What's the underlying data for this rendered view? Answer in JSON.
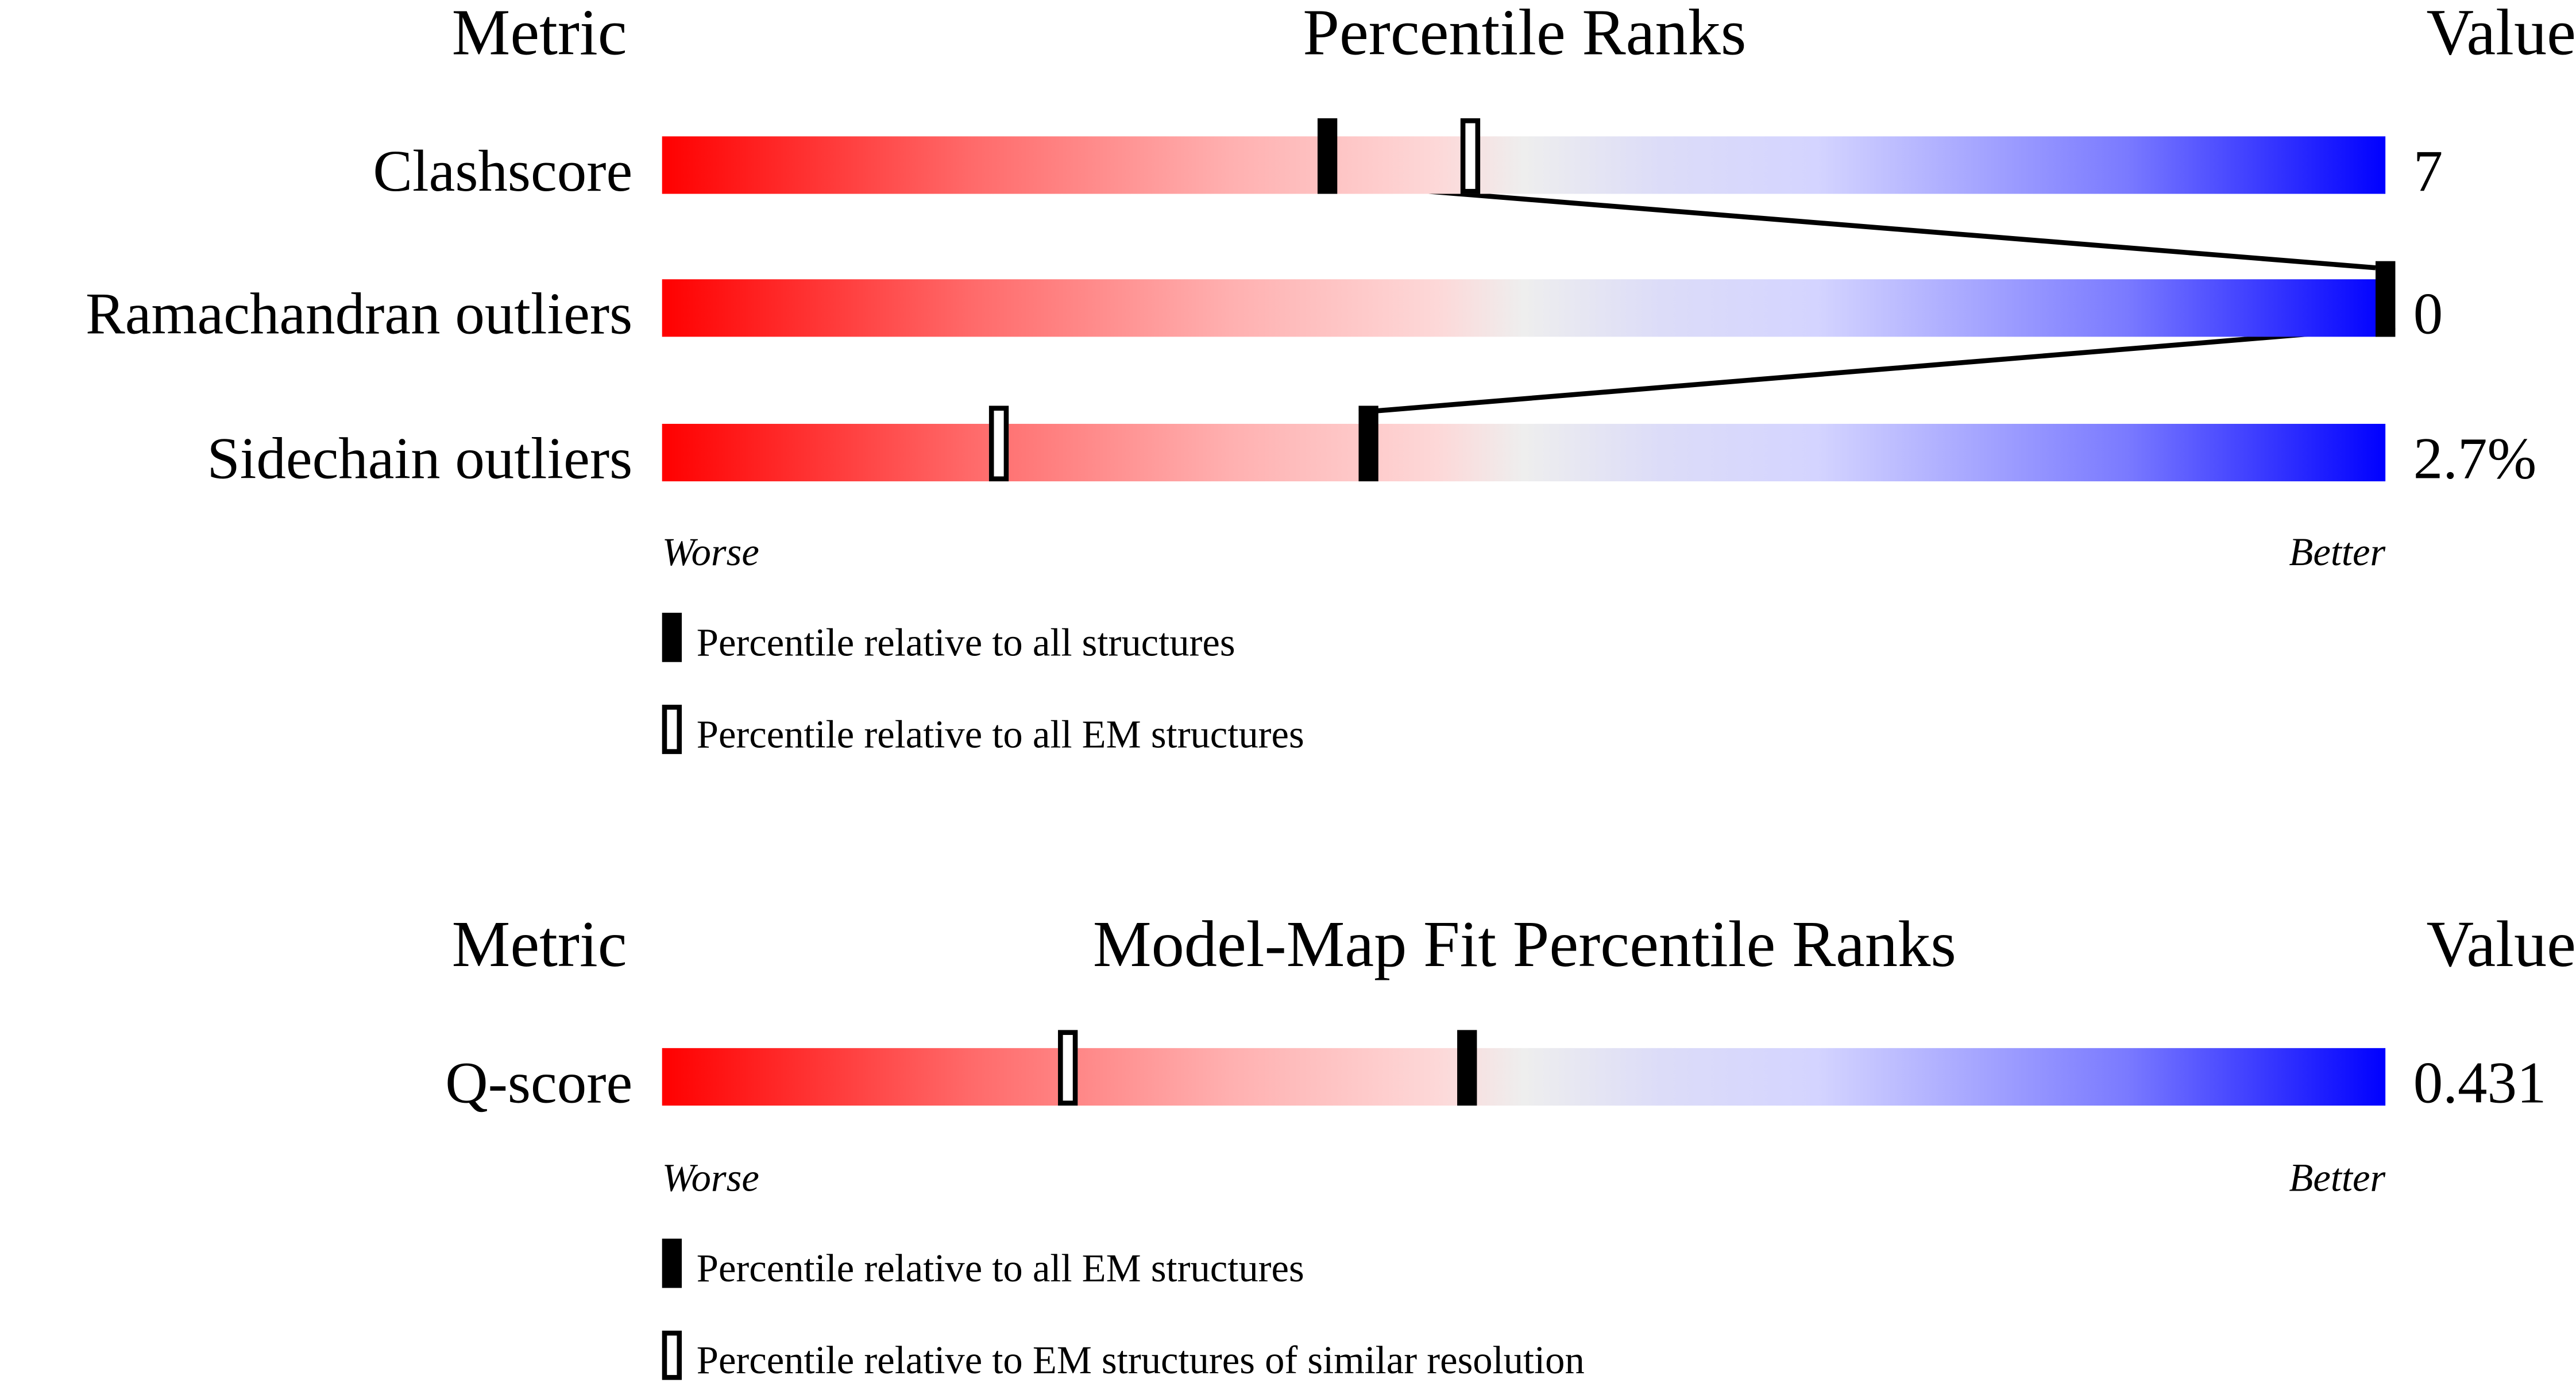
{
  "chart_data": [
    {
      "type": "table",
      "header": {
        "metric": "Metric",
        "title": "Percentile Ranks",
        "value": "Value"
      },
      "rows": [
        {
          "metric": "Clashscore",
          "value": "7",
          "percentile_all": 38.6,
          "percentile_em": 46.9
        },
        {
          "metric": "Ramachandran outliers",
          "value": "0",
          "percentile_all": 100,
          "percentile_em": 100
        },
        {
          "metric": "Sidechain outliers",
          "value": "2.7%",
          "percentile_all": 41.0,
          "percentile_em": 19.5
        }
      ],
      "axis": {
        "left": "Worse",
        "right": "Better"
      },
      "xlim": [
        0,
        100
      ],
      "legend": {
        "solid": "Percentile relative to all structures",
        "hollow": "Percentile relative to all EM structures"
      },
      "colors": {
        "worse": "#ff0000",
        "middle": "#eeeeee",
        "better": "#0000ff"
      }
    },
    {
      "type": "table",
      "header": {
        "metric": "Metric",
        "title": "Model-Map Fit Percentile Ranks",
        "value": "Value"
      },
      "rows": [
        {
          "metric": "Q-score",
          "value": "0.431",
          "percentile_all": 46.7,
          "percentile_em": 23.5
        }
      ],
      "axis": {
        "left": "Worse",
        "right": "Better"
      },
      "xlim": [
        0,
        100
      ],
      "legend": {
        "solid": "Percentile relative to all EM structures",
        "hollow": "Percentile relative to EM structures of similar resolution"
      },
      "colors": {
        "worse": "#ff0000",
        "middle": "#eeeeee",
        "better": "#0000ff"
      }
    }
  ]
}
